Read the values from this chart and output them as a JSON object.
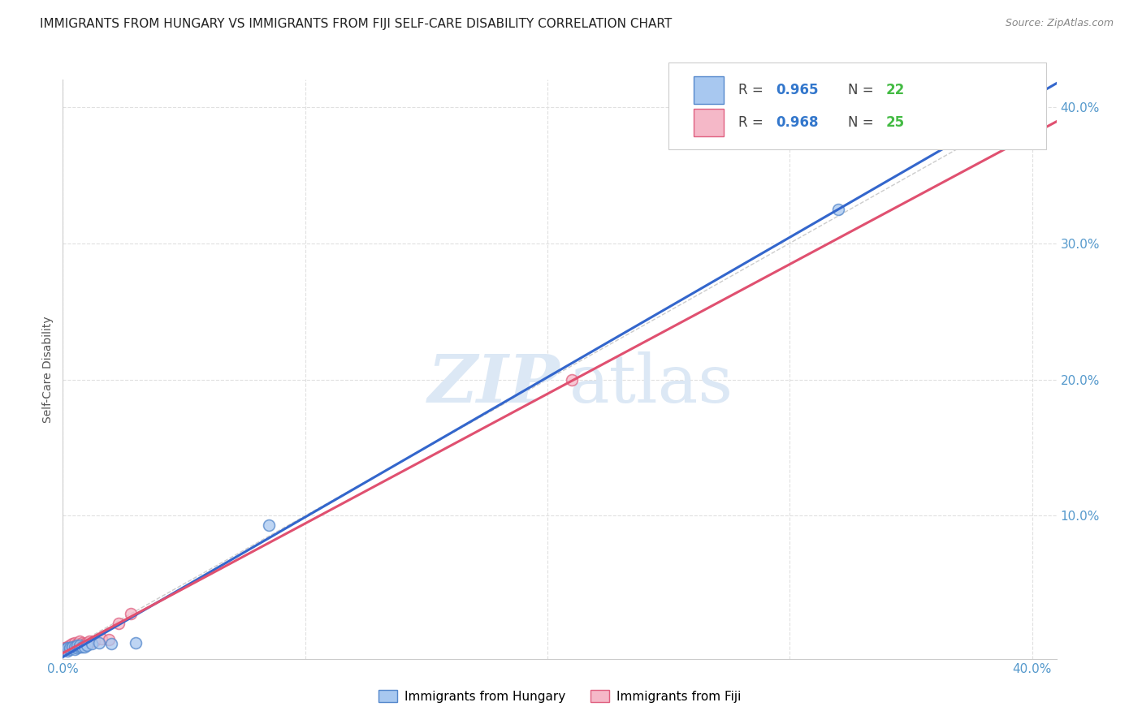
{
  "title": "IMMIGRANTS FROM HUNGARY VS IMMIGRANTS FROM FIJI SELF-CARE DISABILITY CORRELATION CHART",
  "source": "Source: ZipAtlas.com",
  "ylabel": "Self-Care Disability",
  "xlim": [
    0.0,
    0.41
  ],
  "ylim": [
    -0.005,
    0.42
  ],
  "xtick_vals": [
    0.0,
    0.1,
    0.2,
    0.3,
    0.4
  ],
  "ytick_vals": [
    0.1,
    0.2,
    0.3,
    0.4
  ],
  "hungary_R": "0.965",
  "hungary_N": "22",
  "fiji_R": "0.968",
  "fiji_N": "25",
  "hungary_scatter_color": "#a8c8f0",
  "hungary_edge_color": "#5588cc",
  "hungary_line_color": "#3366cc",
  "fiji_scatter_color": "#f5b8c8",
  "fiji_edge_color": "#e06080",
  "fiji_line_color": "#e05070",
  "ref_line_color": "#cccccc",
  "grid_color": "#e0e0e0",
  "tick_color": "#5599cc",
  "legend_R_color": "#3377cc",
  "legend_N_color": "#44bb44",
  "watermark_color": "#dce8f5",
  "bg_color": "#ffffff",
  "title_fontsize": 11,
  "axis_tick_fontsize": 11,
  "legend_fontsize": 12
}
